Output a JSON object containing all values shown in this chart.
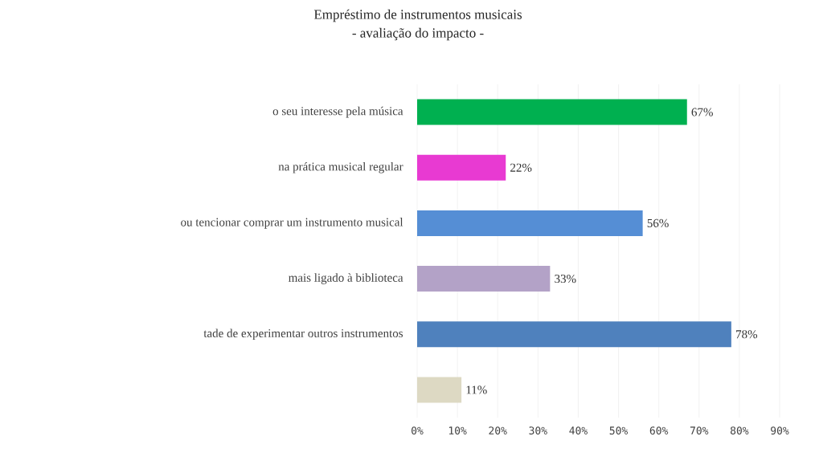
{
  "chart_data": {
    "type": "bar",
    "orientation": "horizontal",
    "title": "Empréstimo de instrumentos musicais",
    "subtitle": "- avaliação do impacto -",
    "categories": [
      "o seu interesse pela música",
      "na prática musical regular",
      "ou tencionar comprar um instrumento musical",
      "mais ligado à biblioteca",
      "tade de experimentar outros instrumentos",
      null
    ],
    "values": [
      67,
      22,
      56,
      33,
      78,
      11
    ],
    "colors": [
      "#00b050",
      "#e83ad2",
      "#558ed5",
      "#b3a2c7",
      "#4f81bd",
      "#ddd9c3"
    ],
    "value_labels": [
      "67%",
      "22%",
      "56%",
      "33%",
      "78%",
      "11%"
    ],
    "xlim": [
      0,
      90
    ],
    "xticks": [
      {
        "value": 0,
        "label": "0%"
      },
      {
        "value": 10,
        "label": "10%"
      },
      {
        "value": 20,
        "label": "20%"
      },
      {
        "value": 30,
        "label": "30%"
      },
      {
        "value": 40,
        "label": "40%"
      },
      {
        "value": 50,
        "label": "50%"
      },
      {
        "value": 60,
        "label": "60%"
      },
      {
        "value": 70,
        "label": "70%"
      },
      {
        "value": 80,
        "label": "80%"
      },
      {
        "value": 90,
        "label": "90%"
      }
    ],
    "grid": "x"
  }
}
